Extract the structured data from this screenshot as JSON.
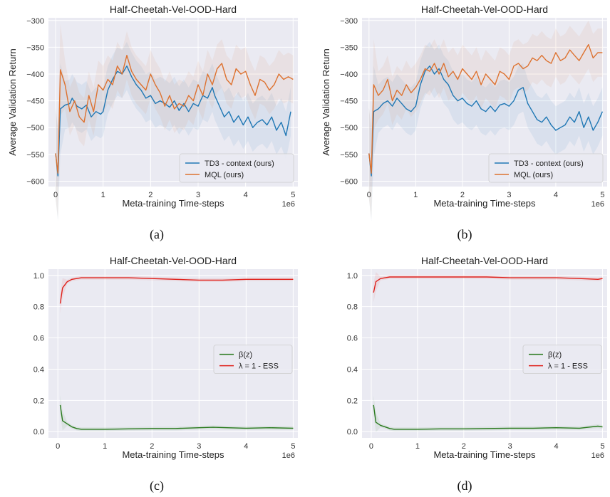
{
  "chart_data": [
    {
      "type": "line",
      "caption": "(a)",
      "title": "Half-Cheetah-Vel-OOD-Hard",
      "xlabel": "Meta-training Time-steps",
      "ylabel": "Average Validation Return",
      "x_multiplier": "1e6",
      "xlim": [
        -0.15,
        5.1
      ],
      "ylim": [
        -610,
        -295
      ],
      "xticks": [
        0,
        1,
        2,
        3,
        4,
        5
      ],
      "yticks": [
        -300,
        -350,
        -400,
        -450,
        -500,
        -550,
        -600
      ],
      "grid": true,
      "legend_position": "lower-right",
      "series": [
        {
          "name": "TD3 - context (ours)",
          "color": "#1f77b4",
          "x": [
            0,
            0.05,
            0.1,
            0.2,
            0.3,
            0.35,
            0.45,
            0.55,
            0.65,
            0.75,
            0.85,
            0.95,
            1.0,
            1.1,
            1.2,
            1.3,
            1.4,
            1.5,
            1.6,
            1.7,
            1.8,
            1.9,
            2.0,
            2.1,
            2.2,
            2.3,
            2.4,
            2.5,
            2.6,
            2.7,
            2.8,
            2.9,
            3.0,
            3.1,
            3.2,
            3.3,
            3.35,
            3.45,
            3.55,
            3.65,
            3.75,
            3.85,
            3.95,
            4.05,
            4.15,
            4.25,
            4.35,
            4.45,
            4.55,
            4.65,
            4.75,
            4.85,
            4.95
          ],
          "y": [
            -548,
            -590,
            -465,
            -458,
            -455,
            -445,
            -460,
            -465,
            -458,
            -480,
            -470,
            -475,
            -470,
            -430,
            -410,
            -395,
            -400,
            -385,
            -405,
            -420,
            -430,
            -445,
            -440,
            -455,
            -450,
            -455,
            -462,
            -450,
            -468,
            -455,
            -470,
            -455,
            -460,
            -440,
            -445,
            -425,
            -440,
            -460,
            -480,
            -470,
            -490,
            -478,
            -495,
            -480,
            -500,
            -490,
            -485,
            -495,
            -480,
            -505,
            -490,
            -515,
            -470
          ]
        },
        {
          "name": "MQL (ours)",
          "color": "#dd7230",
          "x": [
            0,
            0.05,
            0.1,
            0.2,
            0.3,
            0.4,
            0.5,
            0.6,
            0.7,
            0.8,
            0.9,
            1.0,
            1.1,
            1.2,
            1.3,
            1.4,
            1.5,
            1.6,
            1.7,
            1.8,
            1.9,
            2.0,
            2.1,
            2.2,
            2.3,
            2.4,
            2.5,
            2.6,
            2.7,
            2.8,
            2.9,
            3.0,
            3.1,
            3.2,
            3.3,
            3.4,
            3.5,
            3.6,
            3.7,
            3.8,
            3.9,
            4.0,
            4.1,
            4.2,
            4.3,
            4.4,
            4.5,
            4.6,
            4.7,
            4.8,
            4.9,
            5.0
          ],
          "y": [
            -548,
            -585,
            -392,
            -420,
            -470,
            -450,
            -480,
            -490,
            -440,
            -470,
            -420,
            -430,
            -410,
            -420,
            -385,
            -400,
            -365,
            -395,
            -410,
            -420,
            -430,
            -400,
            -420,
            -435,
            -460,
            -440,
            -465,
            -455,
            -460,
            -440,
            -450,
            -420,
            -440,
            -400,
            -420,
            -390,
            -380,
            -410,
            -420,
            -390,
            -400,
            -395,
            -420,
            -440,
            -410,
            -415,
            -430,
            -420,
            -400,
            -410,
            -405,
            -410
          ]
        }
      ]
    },
    {
      "type": "line",
      "caption": "(b)",
      "title": "Half-Cheetah-Vel-OOD-Hard",
      "xlabel": "Meta-training Time-steps",
      "ylabel": "Average Validation Return",
      "x_multiplier": "1e6",
      "xlim": [
        -0.15,
        5.1
      ],
      "ylim": [
        -610,
        -295
      ],
      "xticks": [
        0,
        1,
        2,
        3,
        4,
        5
      ],
      "yticks": [
        -300,
        -350,
        -400,
        -450,
        -500,
        -550,
        -600
      ],
      "grid": true,
      "legend_position": "lower-right",
      "series": [
        {
          "name": "TD3 - context (ours)",
          "color": "#1f77b4",
          "x": [
            0,
            0.05,
            0.1,
            0.2,
            0.3,
            0.4,
            0.5,
            0.6,
            0.7,
            0.8,
            0.9,
            1.0,
            1.1,
            1.2,
            1.3,
            1.4,
            1.5,
            1.6,
            1.7,
            1.8,
            1.9,
            2.0,
            2.1,
            2.2,
            2.3,
            2.4,
            2.5,
            2.6,
            2.7,
            2.8,
            2.9,
            3.0,
            3.1,
            3.2,
            3.3,
            3.4,
            3.5,
            3.6,
            3.7,
            3.8,
            3.9,
            4.0,
            4.1,
            4.2,
            4.3,
            4.4,
            4.5,
            4.6,
            4.7,
            4.8,
            4.9,
            5.0
          ],
          "y": [
            -548,
            -590,
            -470,
            -465,
            -455,
            -450,
            -460,
            -445,
            -455,
            -465,
            -470,
            -460,
            -420,
            -395,
            -385,
            -400,
            -390,
            -410,
            -420,
            -440,
            -450,
            -445,
            -455,
            -460,
            -450,
            -465,
            -470,
            -460,
            -470,
            -458,
            -455,
            -460,
            -450,
            -430,
            -425,
            -455,
            -470,
            -485,
            -490,
            -480,
            -495,
            -505,
            -500,
            -495,
            -480,
            -490,
            -470,
            -500,
            -480,
            -505,
            -490,
            -470
          ]
        },
        {
          "name": "MQL (ours)",
          "color": "#dd7230",
          "x": [
            0,
            0.05,
            0.1,
            0.2,
            0.3,
            0.4,
            0.5,
            0.6,
            0.7,
            0.8,
            0.9,
            1.0,
            1.1,
            1.2,
            1.3,
            1.4,
            1.5,
            1.6,
            1.7,
            1.8,
            1.9,
            2.0,
            2.1,
            2.2,
            2.3,
            2.4,
            2.5,
            2.6,
            2.7,
            2.8,
            2.9,
            3.0,
            3.1,
            3.2,
            3.3,
            3.4,
            3.5,
            3.6,
            3.7,
            3.8,
            3.9,
            4.0,
            4.1,
            4.2,
            4.3,
            4.4,
            4.5,
            4.6,
            4.7,
            4.8,
            4.9,
            5.0
          ],
          "y": [
            -548,
            -585,
            -420,
            -440,
            -430,
            -410,
            -450,
            -430,
            -440,
            -420,
            -435,
            -425,
            -410,
            -390,
            -395,
            -380,
            -400,
            -380,
            -405,
            -395,
            -410,
            -390,
            -400,
            -410,
            -395,
            -420,
            -400,
            -410,
            -420,
            -395,
            -400,
            -410,
            -385,
            -380,
            -390,
            -385,
            -370,
            -375,
            -365,
            -375,
            -380,
            -360,
            -375,
            -370,
            -355,
            -365,
            -375,
            -360,
            -345,
            -370,
            -360,
            -360
          ]
        }
      ]
    },
    {
      "type": "line",
      "caption": "(c)",
      "title": "Half-Cheetah-Vel-OOD-Hard",
      "xlabel": "Meta-training Time-steps",
      "ylabel": "",
      "x_multiplier": "1e6",
      "xlim": [
        -0.2,
        5.1
      ],
      "ylim": [
        -0.04,
        1.04
      ],
      "xticks": [
        0,
        1,
        2,
        3,
        4,
        5
      ],
      "yticks": [
        0.0,
        0.2,
        0.4,
        0.6,
        0.8,
        1.0
      ],
      "ytick_labels": [
        "0.0",
        "0.2",
        "0.4",
        "0.6",
        "0.8",
        "1.0"
      ],
      "grid": true,
      "legend_position": "center-right",
      "series": [
        {
          "name": "β(z)",
          "color": "#2a7a1e",
          "x": [
            0.05,
            0.1,
            0.2,
            0.3,
            0.4,
            0.5,
            0.7,
            1.0,
            1.5,
            2.0,
            2.5,
            3.0,
            3.3,
            3.6,
            4.0,
            4.5,
            5.0
          ],
          "y": [
            0.17,
            0.07,
            0.05,
            0.03,
            0.02,
            0.015,
            0.015,
            0.015,
            0.018,
            0.02,
            0.02,
            0.025,
            0.028,
            0.025,
            0.022,
            0.025,
            0.022
          ]
        },
        {
          "name": "λ = 1 - ESS",
          "color": "#e0211b",
          "x": [
            0.05,
            0.1,
            0.2,
            0.3,
            0.4,
            0.5,
            0.7,
            1.0,
            1.5,
            2.0,
            2.5,
            3.0,
            3.5,
            4.0,
            4.5,
            5.0
          ],
          "y": [
            0.82,
            0.92,
            0.96,
            0.975,
            0.98,
            0.985,
            0.985,
            0.985,
            0.985,
            0.98,
            0.975,
            0.97,
            0.97,
            0.975,
            0.975,
            0.975
          ]
        }
      ]
    },
    {
      "type": "line",
      "caption": "(d)",
      "title": "Half-Cheetah-Vel-OOD-Hard",
      "xlabel": "Meta-training Time-steps",
      "ylabel": "",
      "x_multiplier": "1e6",
      "xlim": [
        -0.2,
        5.1
      ],
      "ylim": [
        -0.04,
        1.04
      ],
      "xticks": [
        0,
        1,
        2,
        3,
        4,
        5
      ],
      "yticks": [
        0.0,
        0.2,
        0.4,
        0.6,
        0.8,
        1.0
      ],
      "ytick_labels": [
        "0.0",
        "0.2",
        "0.4",
        "0.6",
        "0.8",
        "1.0"
      ],
      "grid": true,
      "legend_position": "center-right",
      "series": [
        {
          "name": "β(z)",
          "color": "#2a7a1e",
          "x": [
            0.05,
            0.1,
            0.2,
            0.3,
            0.4,
            0.5,
            0.7,
            1.0,
            1.5,
            2.0,
            2.5,
            3.0,
            3.5,
            4.0,
            4.5,
            4.9,
            5.0
          ],
          "y": [
            0.17,
            0.06,
            0.04,
            0.03,
            0.02,
            0.015,
            0.015,
            0.015,
            0.018,
            0.018,
            0.02,
            0.022,
            0.022,
            0.025,
            0.022,
            0.035,
            0.03
          ]
        },
        {
          "name": "λ = 1 - ESS",
          "color": "#e0211b",
          "x": [
            0.05,
            0.1,
            0.2,
            0.3,
            0.4,
            0.5,
            0.7,
            1.0,
            1.5,
            2.0,
            2.5,
            3.0,
            3.5,
            4.0,
            4.5,
            4.9,
            5.0
          ],
          "y": [
            0.89,
            0.96,
            0.98,
            0.985,
            0.99,
            0.99,
            0.99,
            0.99,
            0.99,
            0.99,
            0.99,
            0.985,
            0.985,
            0.985,
            0.98,
            0.975,
            0.98
          ]
        }
      ]
    }
  ]
}
